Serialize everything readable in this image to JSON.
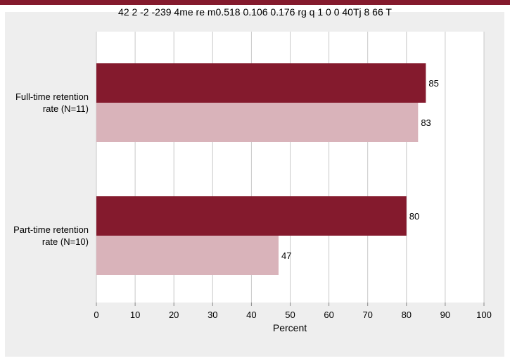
{
  "colors": {
    "accent": "#841a2d",
    "panel_background": "#eeeeee",
    "plot_background": "#ffffff",
    "grid": "#c8c8c8"
  },
  "chart_data": {
    "type": "bar",
    "orientation": "horizontal",
    "title": "42 2 -2 -239 4me re m0.518 0.106 0.176 rg q 1 0 0 40Tj 8 66 T",
    "xlabel": "Percent",
    "ylabel": "",
    "xlim": [
      0,
      100
    ],
    "xticks": [
      0,
      10,
      20,
      30,
      40,
      50,
      60,
      70,
      80,
      90,
      100
    ],
    "grid": true,
    "legend": "none",
    "categories": [
      {
        "line1": "Full-time retention",
        "line2": "rate (N=11)"
      },
      {
        "line1": "Part-time retention",
        "line2": "rate (N=10)"
      }
    ],
    "series": [
      {
        "values": [
          85,
          80
        ],
        "color": "#841a2d"
      },
      {
        "values": [
          83,
          47
        ],
        "color": "#d9b3ba"
      }
    ]
  }
}
